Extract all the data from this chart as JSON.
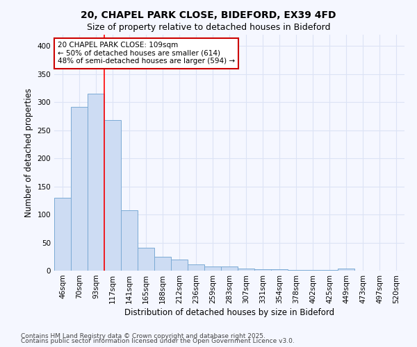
{
  "title": "20, CHAPEL PARK CLOSE, BIDEFORD, EX39 4FD",
  "subtitle": "Size of property relative to detached houses in Bideford",
  "xlabel": "Distribution of detached houses by size in Bideford",
  "ylabel": "Number of detached properties",
  "categories": [
    "46sqm",
    "70sqm",
    "93sqm",
    "117sqm",
    "141sqm",
    "165sqm",
    "188sqm",
    "212sqm",
    "236sqm",
    "259sqm",
    "283sqm",
    "307sqm",
    "331sqm",
    "354sqm",
    "378sqm",
    "402sqm",
    "425sqm",
    "449sqm",
    "473sqm",
    "497sqm",
    "520sqm"
  ],
  "values": [
    130,
    292,
    315,
    268,
    108,
    41,
    25,
    20,
    11,
    8,
    7,
    4,
    3,
    2,
    1,
    1,
    1,
    4,
    0,
    0,
    0
  ],
  "bar_color": "#cddcf3",
  "bar_edge_color": "#7aaad4",
  "background_color": "#f5f7ff",
  "grid_color": "#dce3f5",
  "red_line_index": 3,
  "annotation_text_line1": "20 CHAPEL PARK CLOSE: 109sqm",
  "annotation_text_line2": "← 50% of detached houses are smaller (614)",
  "annotation_text_line3": "48% of semi-detached houses are larger (594) →",
  "annotation_box_color": "#ffffff",
  "annotation_box_edge": "#cc0000",
  "ylim": [
    0,
    420
  ],
  "yticks": [
    0,
    50,
    100,
    150,
    200,
    250,
    300,
    350,
    400
  ],
  "footer_line1": "Contains HM Land Registry data © Crown copyright and database right 2025.",
  "footer_line2": "Contains public sector information licensed under the Open Government Licence v3.0.",
  "title_fontsize": 10,
  "subtitle_fontsize": 9,
  "axis_label_fontsize": 8.5,
  "tick_fontsize": 7.5,
  "annotation_fontsize": 7.5,
  "footer_fontsize": 6.5
}
